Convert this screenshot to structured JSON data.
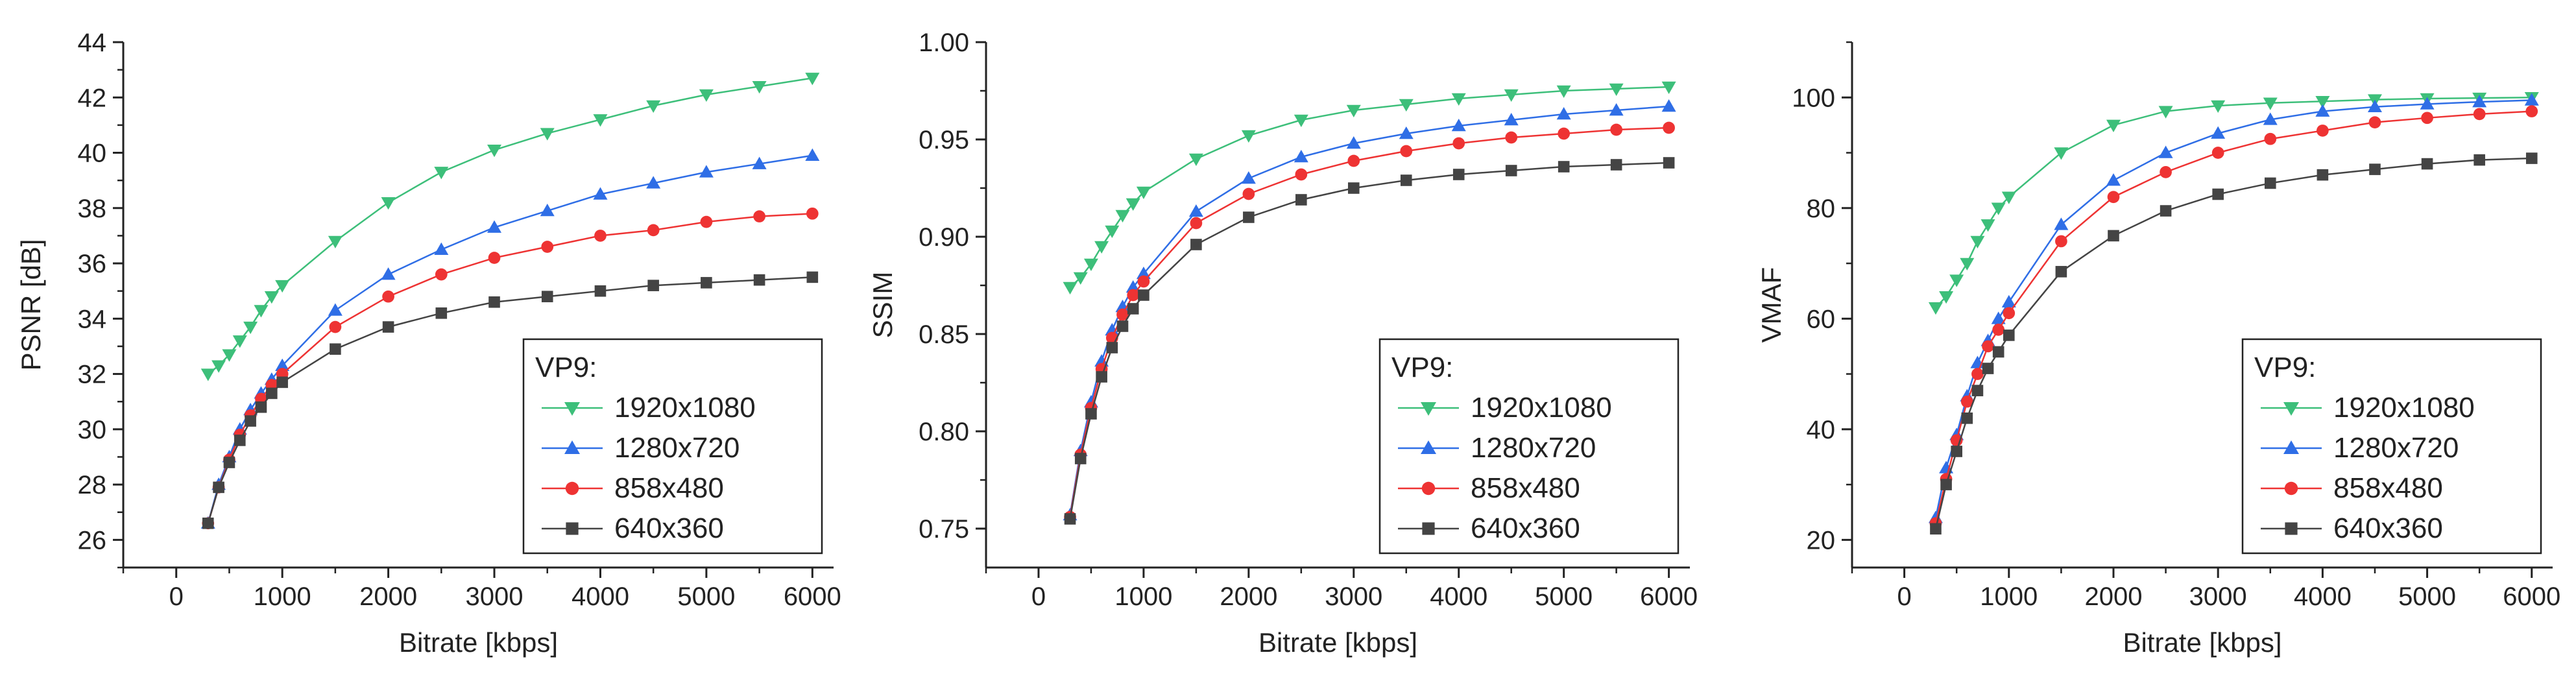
{
  "colors": {
    "1920x1080": "#3dbf7a",
    "1280x720": "#2f6ee6",
    "858x480": "#ee3333",
    "640x360": "#444444",
    "axis": "#222222"
  },
  "chart_data": [
    {
      "type": "line",
      "title": "",
      "xlabel": "Bitrate [kbps]",
      "ylabel": "PSNR [dB]",
      "xlim": [
        -500,
        6200
      ],
      "ylim": [
        25,
        44
      ],
      "xticks": [
        0,
        1000,
        2000,
        3000,
        4000,
        5000,
        6000
      ],
      "yticks": [
        26,
        28,
        30,
        32,
        34,
        36,
        38,
        40,
        42,
        44
      ],
      "ytick_labels": [
        "26",
        "28",
        "30",
        "32",
        "34",
        "36",
        "38",
        "40",
        "42",
        "44"
      ],
      "legend_title": "VP9:",
      "legend_position": "bottom-right",
      "x": [
        300,
        400,
        500,
        600,
        700,
        800,
        900,
        1000,
        1500,
        2000,
        2500,
        3000,
        3500,
        4000,
        4500,
        5000,
        5500,
        6000
      ],
      "series": [
        {
          "name": "1920x1080",
          "marker": "triangle-down",
          "values": [
            32.0,
            32.3,
            32.7,
            33.2,
            33.7,
            34.3,
            34.8,
            35.2,
            36.8,
            38.2,
            39.3,
            40.1,
            40.7,
            41.2,
            41.7,
            42.1,
            42.4,
            42.7
          ]
        },
        {
          "name": "1280x720",
          "marker": "triangle-up",
          "values": [
            26.6,
            28.0,
            29.0,
            30.0,
            30.7,
            31.3,
            31.8,
            32.3,
            34.3,
            35.6,
            36.5,
            37.3,
            37.9,
            38.5,
            38.9,
            39.3,
            39.6,
            39.9
          ]
        },
        {
          "name": "858x480",
          "marker": "circle",
          "values": [
            26.6,
            27.9,
            28.9,
            29.8,
            30.5,
            31.1,
            31.6,
            32.0,
            33.7,
            34.8,
            35.6,
            36.2,
            36.6,
            37.0,
            37.2,
            37.5,
            37.7,
            37.8
          ]
        },
        {
          "name": "640x360",
          "marker": "square",
          "values": [
            26.6,
            27.9,
            28.8,
            29.6,
            30.3,
            30.8,
            31.3,
            31.7,
            32.9,
            33.7,
            34.2,
            34.6,
            34.8,
            35.0,
            35.2,
            35.3,
            35.4,
            35.5
          ]
        }
      ]
    },
    {
      "type": "line",
      "title": "",
      "xlabel": "Bitrate [kbps]",
      "ylabel": "SSIM",
      "xlim": [
        -500,
        6200
      ],
      "ylim": [
        0.73,
        1.0
      ],
      "xticks": [
        0,
        1000,
        2000,
        3000,
        4000,
        5000,
        6000
      ],
      "yticks": [
        0.75,
        0.8,
        0.85,
        0.9,
        0.95,
        1.0
      ],
      "ytick_labels": [
        "0.75",
        "0.80",
        "0.85",
        "0.90",
        "0.95",
        "1.00"
      ],
      "legend_title": "VP9:",
      "legend_position": "bottom-right",
      "x": [
        300,
        400,
        500,
        600,
        700,
        800,
        900,
        1000,
        1500,
        2000,
        2500,
        3000,
        3500,
        4000,
        4500,
        5000,
        5500,
        6000
      ],
      "series": [
        {
          "name": "1920x1080",
          "marker": "triangle-down",
          "values": [
            0.874,
            0.879,
            0.886,
            0.895,
            0.903,
            0.911,
            0.917,
            0.923,
            0.94,
            0.952,
            0.96,
            0.965,
            0.968,
            0.971,
            0.973,
            0.975,
            0.976,
            0.977
          ]
        },
        {
          "name": "1280x720",
          "marker": "triangle-up",
          "values": [
            0.757,
            0.79,
            0.815,
            0.836,
            0.852,
            0.864,
            0.874,
            0.881,
            0.913,
            0.93,
            0.941,
            0.948,
            0.953,
            0.957,
            0.96,
            0.963,
            0.965,
            0.967
          ]
        },
        {
          "name": "858x480",
          "marker": "circle",
          "values": [
            0.756,
            0.788,
            0.812,
            0.832,
            0.848,
            0.86,
            0.87,
            0.877,
            0.907,
            0.922,
            0.932,
            0.939,
            0.944,
            0.948,
            0.951,
            0.953,
            0.955,
            0.956
          ]
        },
        {
          "name": "640x360",
          "marker": "square",
          "values": [
            0.755,
            0.786,
            0.809,
            0.828,
            0.843,
            0.854,
            0.863,
            0.87,
            0.896,
            0.91,
            0.919,
            0.925,
            0.929,
            0.932,
            0.934,
            0.936,
            0.937,
            0.938
          ]
        }
      ]
    },
    {
      "type": "line",
      "title": "",
      "xlabel": "Bitrate [kbps]",
      "ylabel": "VMAF",
      "xlim": [
        -500,
        6200
      ],
      "ylim": [
        15,
        110
      ],
      "xticks": [
        0,
        1000,
        2000,
        3000,
        4000,
        5000,
        6000
      ],
      "yticks": [
        20,
        40,
        60,
        80,
        100
      ],
      "ytick_labels": [
        "20",
        "40",
        "60",
        "80",
        "100"
      ],
      "legend_title": "VP9:",
      "legend_position": "bottom-right",
      "x": [
        300,
        400,
        500,
        600,
        700,
        800,
        900,
        1000,
        1500,
        2000,
        2500,
        3000,
        3500,
        4000,
        4500,
        5000,
        5500,
        6000
      ],
      "series": [
        {
          "name": "1920x1080",
          "marker": "triangle-down",
          "values": [
            62,
            64,
            67,
            70,
            74,
            77,
            80,
            82,
            90,
            95,
            97.5,
            98.5,
            99,
            99.3,
            99.6,
            99.8,
            99.9,
            100
          ]
        },
        {
          "name": "1280x720",
          "marker": "triangle-up",
          "values": [
            24,
            33,
            39,
            46,
            52,
            56,
            60,
            63,
            77,
            85,
            90,
            93.5,
            96,
            97.5,
            98.3,
            98.8,
            99.2,
            99.5
          ]
        },
        {
          "name": "858x480",
          "marker": "circle",
          "values": [
            23,
            31,
            38,
            45,
            50,
            55,
            58,
            61,
            74,
            82,
            86.5,
            90,
            92.5,
            94,
            95.5,
            96.3,
            97,
            97.5
          ]
        },
        {
          "name": "640x360",
          "marker": "square",
          "values": [
            22,
            30,
            36,
            42,
            47,
            51,
            54,
            57,
            68.5,
            75,
            79.5,
            82.5,
            84.5,
            86,
            87,
            88,
            88.7,
            89
          ]
        }
      ]
    }
  ]
}
